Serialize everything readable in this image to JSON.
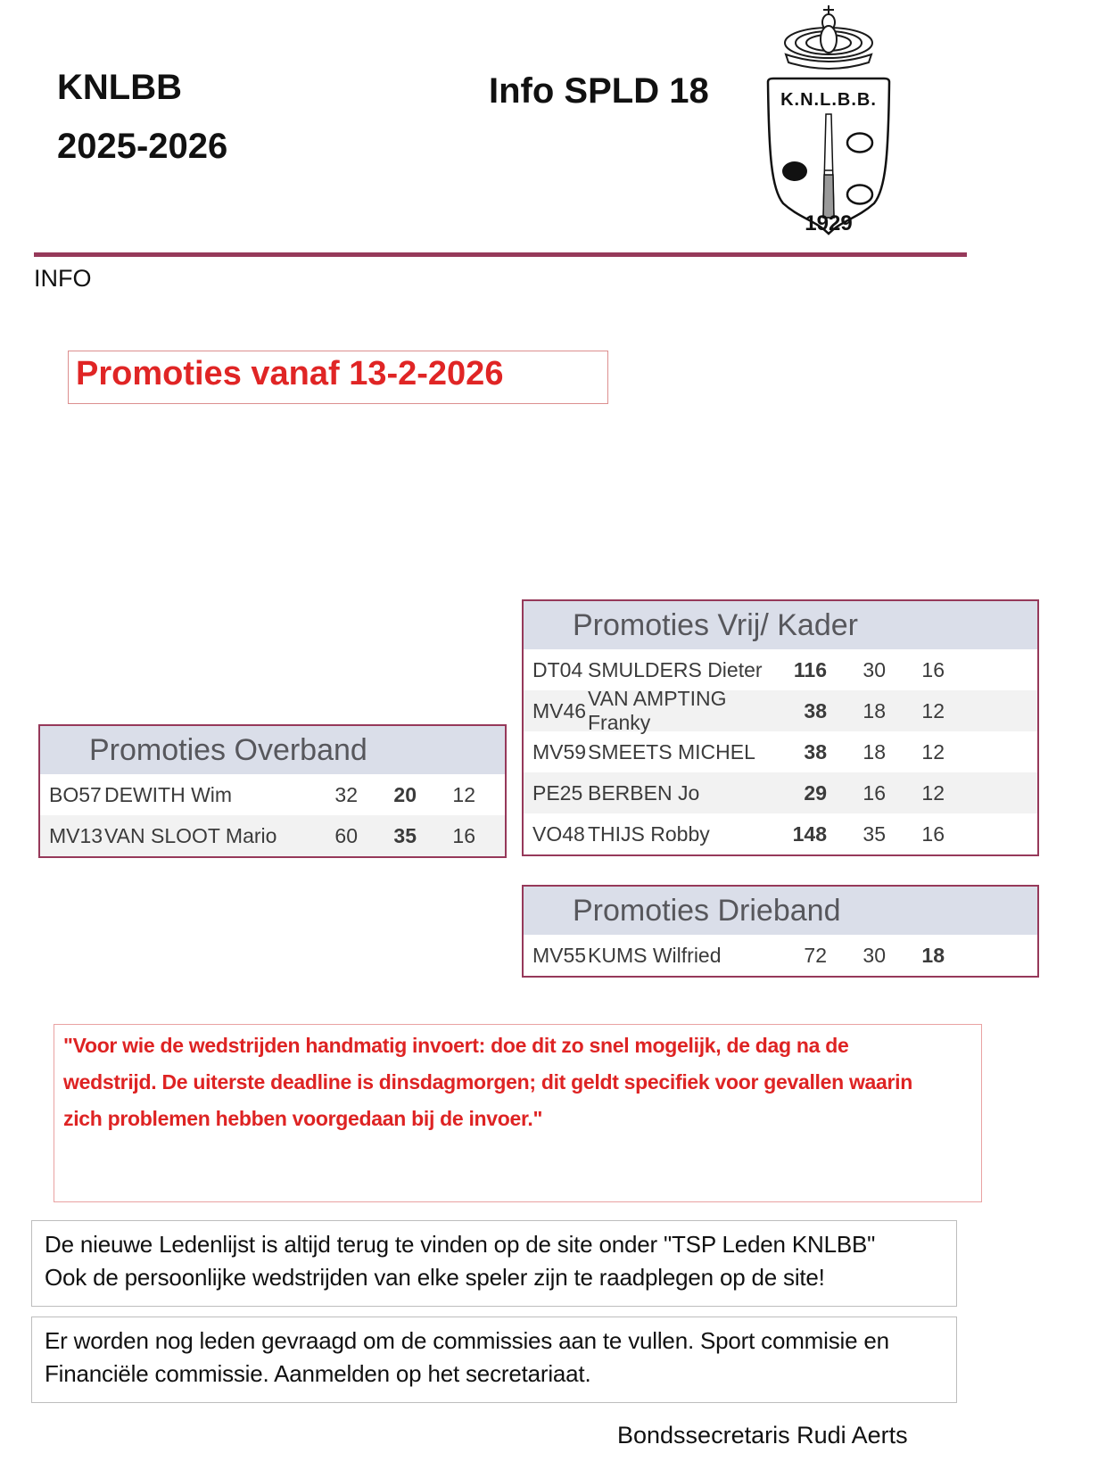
{
  "header": {
    "org": "KNLBB",
    "season": "2025-2026",
    "doc_title": "Info SPLD 18",
    "info_label": "INFO",
    "logo": {
      "org": "K.N.L.B.B.",
      "year": "1929"
    }
  },
  "promo_title": "Promoties vanaf 13-2-2026",
  "tables": [
    {
      "title": "Promoties Overband",
      "rows": [
        {
          "code": "BO57",
          "name": "DEWITH Wim",
          "values": [
            "32",
            "20",
            "12"
          ],
          "bold": [
            false,
            true,
            false
          ]
        },
        {
          "code": "MV13",
          "name": "VAN SLOOT Mario",
          "values": [
            "60",
            "35",
            "16"
          ],
          "bold": [
            false,
            true,
            false
          ]
        }
      ]
    },
    {
      "title": "Promoties Vrij/ Kader",
      "rows": [
        {
          "code": "DT04",
          "name": "SMULDERS Dieter",
          "values": [
            "116",
            "30",
            "16"
          ],
          "bold": [
            true,
            false,
            false
          ]
        },
        {
          "code": "MV46",
          "name": "VAN AMPTING Franky",
          "values": [
            "38",
            "18",
            "12"
          ],
          "bold": [
            true,
            false,
            false
          ]
        },
        {
          "code": "MV59",
          "name": "SMEETS MICHEL",
          "values": [
            "38",
            "18",
            "12"
          ],
          "bold": [
            true,
            false,
            false
          ]
        },
        {
          "code": "PE25",
          "name": "BERBEN Jo",
          "values": [
            "29",
            "16",
            "12"
          ],
          "bold": [
            true,
            false,
            false
          ]
        },
        {
          "code": "VO48",
          "name": "THIJS Robby",
          "values": [
            "148",
            "35",
            "16"
          ],
          "bold": [
            true,
            false,
            false
          ]
        }
      ]
    },
    {
      "title": "Promoties Drieband",
      "rows": [
        {
          "code": "MV55",
          "name": "KUMS Wilfried",
          "values": [
            "72",
            "30",
            "18"
          ],
          "bold": [
            false,
            false,
            true
          ]
        }
      ]
    }
  ],
  "notices": {
    "deadline": {
      "lines": [
        "\"Voor wie de wedstrijden handmatig invoert: doe dit zo snel mogelijk, de dag na de",
        "wedstrijd. De uiterste deadline is dinsdagmorgen; dit geldt specifiek voor gevallen waarin",
        "zich problemen hebben voorgedaan bij de invoer.\""
      ]
    },
    "ledenlijst": {
      "lines": [
        "De nieuwe  Ledenlijst is altijd terug te vinden op de site  onder \"TSP Leden KNLBB\"",
        "Ook de persoonlijke wedstrijden van elke speler zijn te raadplegen op de site!"
      ]
    },
    "commissies": {
      "lines": [
        "Er worden  nog leden gevraagd om de commissies aan te vullen. Sport commisie en",
        "Financiële commissie.   Aanmelden op het secretariaat."
      ]
    }
  },
  "signature": "Bondssecretaris Rudi Aerts",
  "colors": {
    "maroon_accent": "#96395a",
    "table_header_bg": "#dadee9",
    "table_header_text": "#57575c",
    "alt_row_bg": "#f2f2f2",
    "red_text": "#e02525"
  }
}
